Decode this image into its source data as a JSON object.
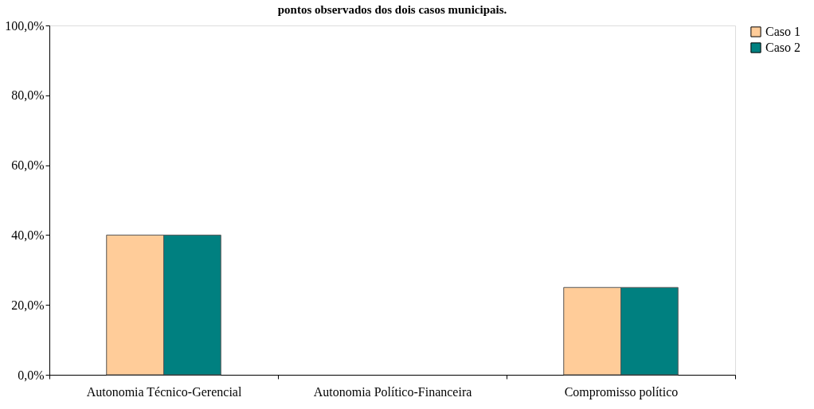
{
  "chart_data": {
    "type": "bar",
    "title": "pontos observados dos dois casos municipais.",
    "categories": [
      "Autonomia Técnico-Gerencial",
      "Autonomia Político-Financeira",
      "Compromisso político"
    ],
    "series": [
      {
        "name": "Caso 1",
        "color": "#ffcc99",
        "values": [
          40,
          0,
          25
        ]
      },
      {
        "name": "Caso 2",
        "color": "#008080",
        "values": [
          40,
          0,
          25
        ]
      }
    ],
    "ylim": [
      0,
      100
    ],
    "yticks": [
      {
        "value": 0,
        "label": "0,0%"
      },
      {
        "value": 20,
        "label": "20,0%"
      },
      {
        "value": 40,
        "label": "40,0%"
      },
      {
        "value": 60,
        "label": "60,0%"
      },
      {
        "value": 80,
        "label": "80,0%"
      },
      {
        "value": 100,
        "label": "100,0%"
      }
    ],
    "grid": false,
    "legend": "right"
  }
}
